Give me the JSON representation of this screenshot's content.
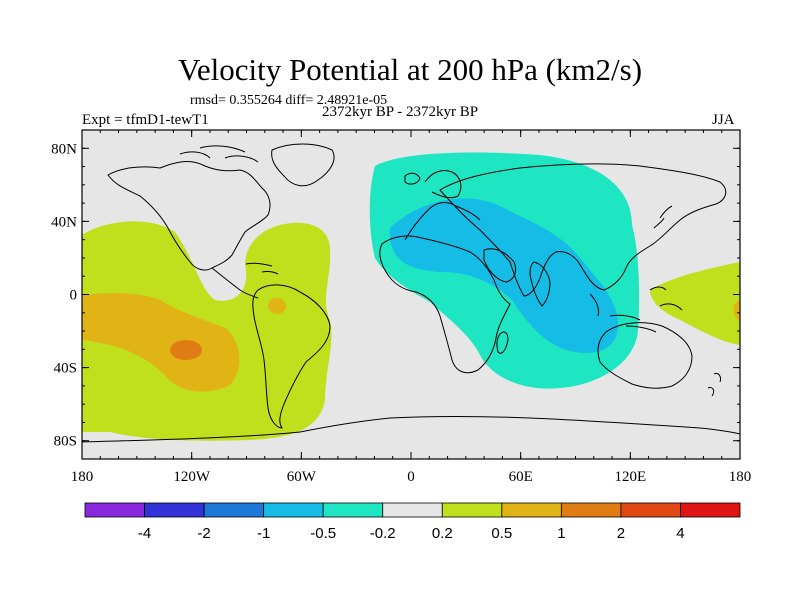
{
  "header": {
    "title": "Velocity Potential at 200 hPa (km2/s)",
    "stats": "rmsd= 0.355264 diff= 2.48921e-05",
    "experiment": "Expt = tfmD1-tewT1",
    "period": "2372kyr BP - 2372kyr BP",
    "season": "JJA"
  },
  "axes": {
    "lat_labels": [
      "80N",
      "40N",
      "0",
      "40S",
      "80S"
    ],
    "lat_values": [
      80,
      40,
      0,
      -40,
      -80
    ],
    "lon_labels": [
      "180",
      "120W",
      "60W",
      "0",
      "60E",
      "120E",
      "180"
    ],
    "lon_values": [
      -180,
      -120,
      -60,
      0,
      60,
      120,
      180
    ]
  },
  "colorbar": {
    "levels": [
      "-4",
      "-2",
      "-1",
      "-0.5",
      "-0.2",
      "0.2",
      "0.5",
      "1",
      "2",
      "4"
    ],
    "colors": [
      "#8a28e0",
      "#3232d8",
      "#1e78d8",
      "#14bce6",
      "#1ee6c3",
      "#e6e6e6",
      "#c0e01e",
      "#e0b414",
      "#e07c14",
      "#e04814",
      "#e01414"
    ]
  },
  "colors": {
    "background": "#e6e6e6",
    "coast": "#000000"
  }
}
